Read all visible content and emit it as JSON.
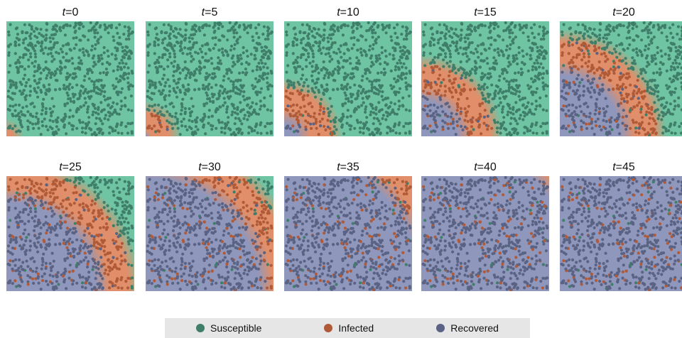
{
  "time_symbol": "t",
  "equals_sign": "=",
  "snapshots": [
    {
      "t": "0",
      "front_radius": 0.06
    },
    {
      "t": "5",
      "front_radius": 0.2
    },
    {
      "t": "10",
      "front_radius": 0.38
    },
    {
      "t": "15",
      "front_radius": 0.56
    },
    {
      "t": "20",
      "front_radius": 0.76
    },
    {
      "t": "25",
      "front_radius": 0.98
    },
    {
      "t": "30",
      "front_radius": 1.17
    },
    {
      "t": "35",
      "front_radius": 1.36
    },
    {
      "t": "40",
      "front_radius": 1.52
    },
    {
      "t": "45",
      "front_radius": 1.66
    }
  ],
  "states": {
    "susceptible": {
      "label": "Susceptible",
      "color": "#3f7f6a",
      "bg": "#6fc4a4"
    },
    "infected": {
      "label": "Infected",
      "color": "#b05a38",
      "bg": "#e08f6a"
    },
    "recovered": {
      "label": "Recovered",
      "color": "#5a6383",
      "bg": "#8f97bd"
    }
  },
  "legend": {
    "items": [
      {
        "state": "susceptible",
        "label": "Susceptible"
      },
      {
        "state": "infected",
        "label": "Infected"
      },
      {
        "state": "recovered",
        "label": "Recovered"
      }
    ]
  }
}
